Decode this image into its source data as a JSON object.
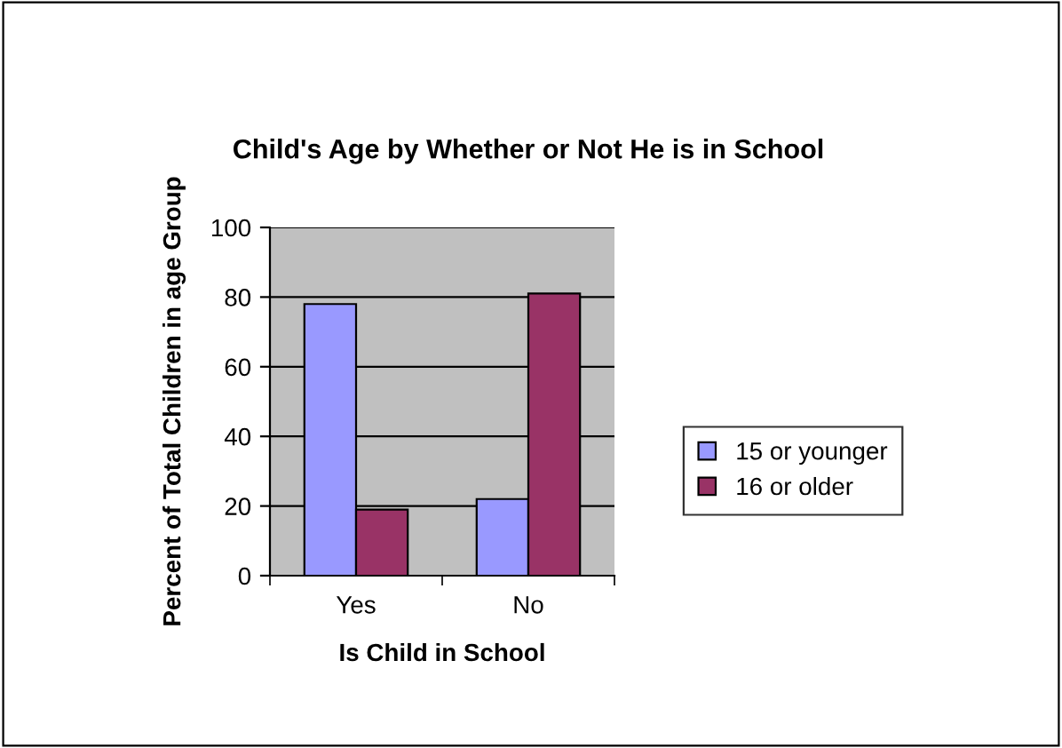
{
  "chart_data": {
    "type": "bar",
    "title": "Child's Age by Whether or Not He is in School",
    "xlabel": "Is Child in School",
    "ylabel": "Percent of Total Children in age Group",
    "categories": [
      "Yes",
      "No"
    ],
    "series": [
      {
        "name": "15 or younger",
        "color": "#9999ff",
        "values": [
          78,
          22
        ]
      },
      {
        "name": "16 or older",
        "color": "#993366",
        "values": [
          19,
          81
        ]
      }
    ],
    "ylim": [
      0,
      100
    ],
    "yticks": [
      0,
      20,
      40,
      60,
      80,
      100
    ],
    "grid": "y",
    "legend": "right"
  }
}
